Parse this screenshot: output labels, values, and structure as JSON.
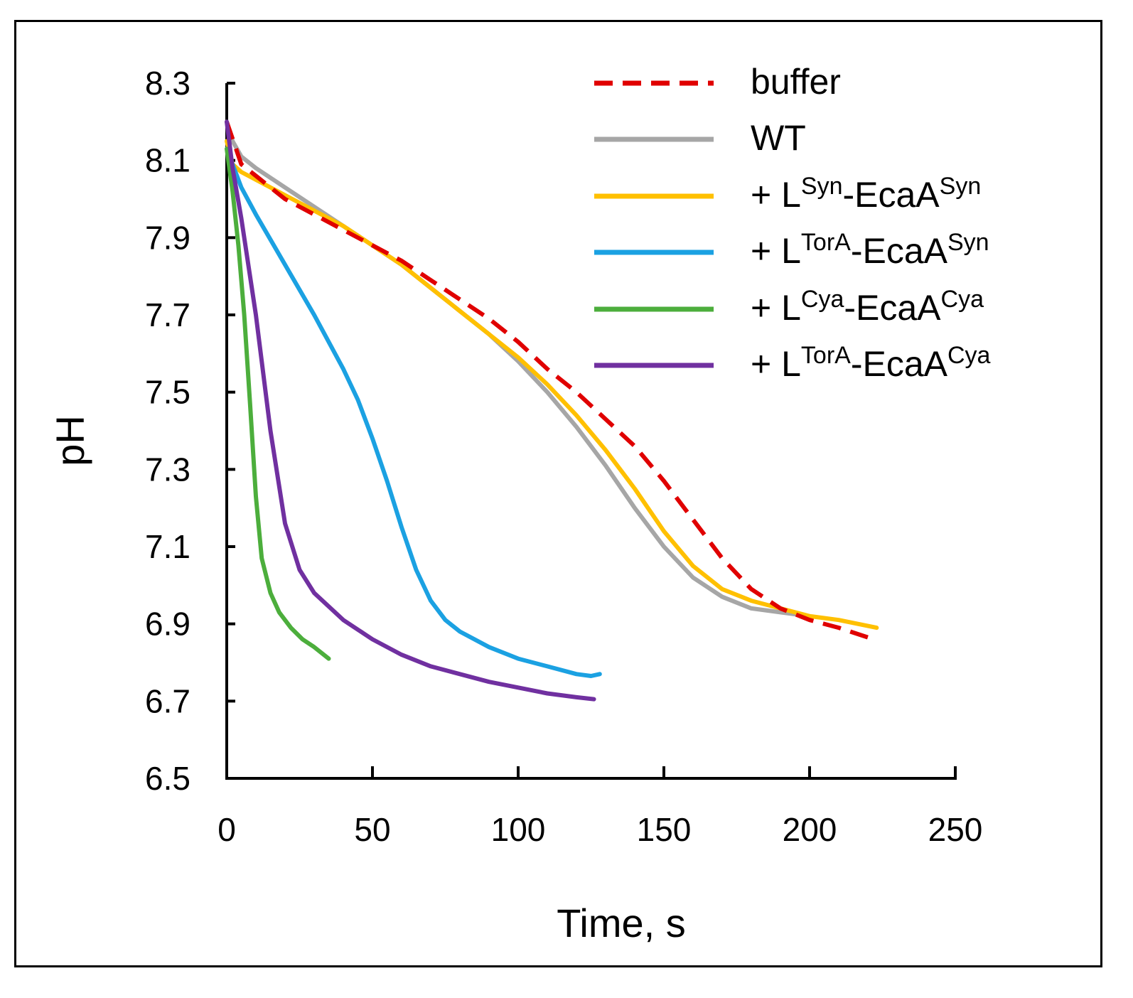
{
  "chart_data": {
    "type": "line",
    "title": "",
    "xlabel": "Time, s",
    "ylabel": "pH",
    "xlim": [
      0,
      250
    ],
    "ylim": [
      6.5,
      8.3
    ],
    "xticks": [
      "0",
      "50",
      "100",
      "150",
      "200",
      "250"
    ],
    "yticks": [
      "6.5",
      "6.7",
      "6.9",
      "7.1",
      "7.3",
      "7.5",
      "7.7",
      "7.9",
      "8.1",
      "8.3"
    ],
    "grid": false,
    "legend_position": "top-right",
    "series": [
      {
        "name": "buffer",
        "legend": {
          "prefix": "",
          "base": "buffer",
          "sup1": "",
          "mid": "",
          "sup2": ""
        },
        "color": "#e00000",
        "dashed": true,
        "x": [
          0,
          5,
          10,
          20,
          30,
          40,
          50,
          60,
          70,
          80,
          90,
          100,
          110,
          120,
          130,
          140,
          150,
          160,
          170,
          180,
          190,
          200,
          210,
          222
        ],
        "y": [
          8.2,
          8.09,
          8.06,
          8.0,
          7.96,
          7.92,
          7.88,
          7.84,
          7.79,
          7.74,
          7.69,
          7.63,
          7.56,
          7.5,
          7.43,
          7.36,
          7.27,
          7.17,
          7.07,
          6.99,
          6.94,
          6.91,
          6.89,
          6.86
        ]
      },
      {
        "name": "WT",
        "legend": {
          "prefix": "",
          "base": "WT",
          "sup1": "",
          "mid": "",
          "sup2": ""
        },
        "color": "#a6a6a6",
        "dashed": false,
        "x": [
          0,
          2,
          5,
          10,
          20,
          30,
          40,
          50,
          60,
          70,
          80,
          90,
          100,
          110,
          120,
          130,
          140,
          150,
          160,
          170,
          180,
          190,
          200
        ],
        "y": [
          8.2,
          8.15,
          8.11,
          8.08,
          8.03,
          7.98,
          7.93,
          7.88,
          7.83,
          7.77,
          7.71,
          7.65,
          7.58,
          7.5,
          7.41,
          7.31,
          7.2,
          7.1,
          7.02,
          6.97,
          6.94,
          6.93,
          6.92
        ]
      },
      {
        "name": "+ LSyn-EcaASyn",
        "legend": {
          "prefix": "+ ",
          "base": "L",
          "sup1": "Syn",
          "mid": "-EcaA",
          "sup2": "Syn"
        },
        "color": "#ffc000",
        "dashed": false,
        "x": [
          0,
          2,
          5,
          10,
          20,
          30,
          40,
          50,
          60,
          70,
          80,
          90,
          100,
          110,
          120,
          130,
          140,
          150,
          160,
          170,
          180,
          190,
          200,
          210,
          223
        ],
        "y": [
          8.15,
          8.09,
          8.07,
          8.05,
          8.01,
          7.97,
          7.93,
          7.88,
          7.83,
          7.77,
          7.71,
          7.65,
          7.59,
          7.52,
          7.44,
          7.35,
          7.25,
          7.14,
          7.05,
          6.99,
          6.96,
          6.94,
          6.92,
          6.91,
          6.89
        ]
      },
      {
        "name": "+ LTorA-EcaASyn",
        "legend": {
          "prefix": "+ ",
          "base": "L",
          "sup1": "TorA",
          "mid": "-EcaA",
          "sup2": "Syn"
        },
        "color": "#1ba1e2",
        "dashed": false,
        "x": [
          0,
          5,
          10,
          20,
          30,
          40,
          45,
          50,
          55,
          60,
          65,
          70,
          75,
          80,
          90,
          100,
          110,
          120,
          125,
          128
        ],
        "y": [
          8.13,
          8.03,
          7.96,
          7.83,
          7.7,
          7.56,
          7.48,
          7.38,
          7.27,
          7.15,
          7.04,
          6.96,
          6.91,
          6.88,
          6.84,
          6.81,
          6.79,
          6.77,
          6.765,
          6.77
        ]
      },
      {
        "name": "+ LCya-EcaACya",
        "legend": {
          "prefix": "+ ",
          "base": "L",
          "sup1": "Cya",
          "mid": "-EcaA",
          "sup2": "Cya"
        },
        "color": "#4cae3c",
        "dashed": false,
        "x": [
          0,
          2,
          4,
          6,
          8,
          10,
          12,
          15,
          18,
          22,
          26,
          30,
          35
        ],
        "y": [
          8.13,
          8.02,
          7.88,
          7.7,
          7.47,
          7.23,
          7.07,
          6.98,
          6.93,
          6.89,
          6.86,
          6.84,
          6.81
        ]
      },
      {
        "name": "+ LTorA-EcaACya",
        "legend": {
          "prefix": "+ ",
          "base": "L",
          "sup1": "TorA",
          "mid": "-EcaA",
          "sup2": "Cya"
        },
        "color": "#7030a0",
        "dashed": false,
        "x": [
          0,
          2,
          5,
          10,
          15,
          20,
          25,
          30,
          40,
          50,
          60,
          70,
          80,
          90,
          100,
          110,
          120,
          126
        ],
        "y": [
          8.2,
          8.08,
          7.95,
          7.7,
          7.4,
          7.16,
          7.04,
          6.98,
          6.91,
          6.86,
          6.82,
          6.79,
          6.77,
          6.75,
          6.735,
          6.72,
          6.71,
          6.705
        ]
      }
    ]
  }
}
